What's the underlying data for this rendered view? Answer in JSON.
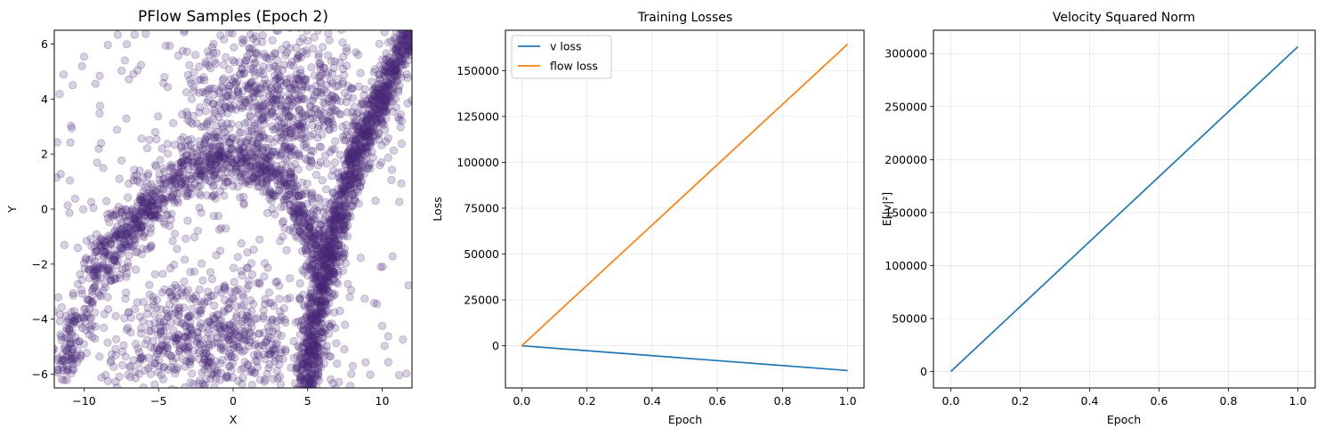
{
  "chart_data": [
    {
      "type": "scatter",
      "title": "PFlow Samples (Epoch 2)",
      "xlabel": "X",
      "ylabel": "Y",
      "xlim": [
        -12,
        12
      ],
      "ylim": [
        -6.5,
        6.5
      ],
      "xticks": [
        -10,
        -5,
        0,
        5,
        10
      ],
      "yticks": [
        -6,
        -4,
        -2,
        0,
        2,
        4,
        6
      ],
      "xtick_labels": [
        "−10",
        "−5",
        "0",
        "5",
        "10"
      ],
      "ytick_labels": [
        "−6",
        "−4",
        "−2",
        "0",
        "2",
        "4",
        "6"
      ],
      "grid": false,
      "point_color": "#482878",
      "point_alpha": 0.22,
      "approx_points": 4000,
      "structures": [
        {
          "name": "right dense band",
          "from": [
            3.8,
            -6.5
          ],
          "to": [
            11.0,
            6.5
          ]
        },
        {
          "name": "left arc band",
          "through": [
            [
              -11.5,
              -6.0
            ],
            [
              -9.0,
              -2.0
            ],
            [
              -6.5,
              -0.5
            ],
            [
              -4.0,
              1.0
            ],
            [
              -1.0,
              2.0
            ],
            [
              2.0,
              1.5
            ],
            [
              4.5,
              0.0
            ],
            [
              6.0,
              -2.0
            ]
          ]
        },
        {
          "name": "upper cloud",
          "center": [
            4.0,
            3.5
          ]
        },
        {
          "name": "lower cloud",
          "center": [
            -1.0,
            -5.0
          ]
        }
      ]
    },
    {
      "type": "line",
      "title": "Training Losses",
      "xlabel": "Epoch",
      "ylabel": "Loss",
      "xlim": [
        -0.05,
        1.05
      ],
      "ylim": [
        -23000,
        172000
      ],
      "xticks": [
        0.0,
        0.2,
        0.4,
        0.6,
        0.8,
        1.0
      ],
      "xtick_labels": [
        "0.0",
        "0.2",
        "0.4",
        "0.6",
        "0.8",
        "1.0"
      ],
      "yticks": [
        0,
        25000,
        50000,
        75000,
        100000,
        125000,
        150000
      ],
      "ytick_labels": [
        "0",
        "25000",
        "50000",
        "75000",
        "100000",
        "125000",
        "150000"
      ],
      "grid": true,
      "legend": "top-left",
      "series": [
        {
          "name": "v loss",
          "color": "#1f77b4",
          "x": [
            0,
            1
          ],
          "y": [
            0,
            -13500
          ]
        },
        {
          "name": "flow loss",
          "color": "#ff7f0e",
          "x": [
            0,
            1
          ],
          "y": [
            0,
            164500
          ]
        }
      ]
    },
    {
      "type": "line",
      "title": "Velocity Squared Norm",
      "xlabel": "Epoch",
      "ylabel": "E[|v|²]",
      "xlim": [
        -0.05,
        1.05
      ],
      "ylim": [
        -15500,
        322000
      ],
      "xticks": [
        0.0,
        0.2,
        0.4,
        0.6,
        0.8,
        1.0
      ],
      "xtick_labels": [
        "0.0",
        "0.2",
        "0.4",
        "0.6",
        "0.8",
        "1.0"
      ],
      "yticks": [
        0,
        50000,
        100000,
        150000,
        200000,
        250000,
        300000
      ],
      "ytick_labels": [
        "0",
        "50000",
        "100000",
        "150000",
        "200000",
        "250000",
        "300000"
      ],
      "grid": true,
      "series": [
        {
          "color": "#1f77b4",
          "x": [
            0,
            1
          ],
          "y": [
            0,
            306500
          ]
        }
      ]
    }
  ]
}
